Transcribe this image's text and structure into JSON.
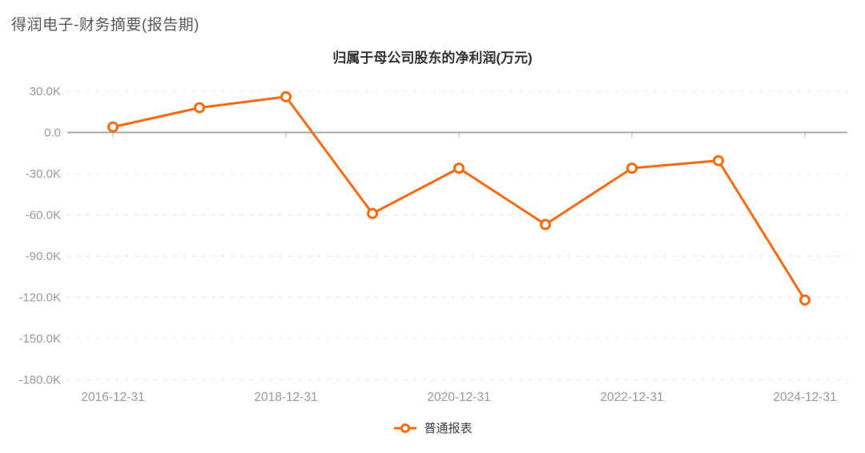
{
  "page": {
    "header_title": "得润电子-财务摘要(报告期)"
  },
  "chart_data": {
    "type": "line",
    "title": "归属于母公司股东的净利润(万元)",
    "unit": "万元",
    "categories": [
      "2016-12-31",
      "2017-12-31",
      "2018-12-31",
      "2019-12-31",
      "2020-12-31",
      "2021-12-31",
      "2022-12-31",
      "2023-12-31",
      "2024-12-31"
    ],
    "series": [
      {
        "name": "普通报表",
        "values": [
          4000,
          18000,
          26000,
          -59000,
          -26000,
          -67000,
          -26000,
          -20500,
          -122000
        ]
      }
    ],
    "ylim": [
      -180000,
      30000
    ],
    "yticks": [
      {
        "label": "30.0K",
        "value": 30000
      },
      {
        "label": "0.0",
        "value": 0
      },
      {
        "label": "-30.0K",
        "value": -30000
      },
      {
        "label": "-60.0K",
        "value": -60000
      },
      {
        "label": "-90.0K",
        "value": -90000
      },
      {
        "label": "-120.0K",
        "value": -120000
      },
      {
        "label": "-150.0K",
        "value": -150000
      },
      {
        "label": "-180.0K",
        "value": -180000
      }
    ],
    "xticks": [
      {
        "label": "2016-12-31",
        "index": 0
      },
      {
        "label": "2018-12-31",
        "index": 2
      },
      {
        "label": "2020-12-31",
        "index": 4
      },
      {
        "label": "2022-12-31",
        "index": 6
      },
      {
        "label": "2024-12-31",
        "index": 8
      }
    ],
    "grid": {
      "horizontal": true,
      "style": "dashed",
      "x_axis_on_zero": true
    },
    "legend": {
      "position": "bottom-center",
      "items": [
        "普通报表"
      ]
    },
    "colors": {
      "line": "#f96a13",
      "marker_fill": "#ffffff",
      "zero_axis": "#a8a8a8",
      "grid": "#e4e4e4",
      "axis_label": "#999999",
      "title": "#333333",
      "header": "#595959",
      "legend_text": "#404040",
      "background": "#ffffff"
    }
  }
}
